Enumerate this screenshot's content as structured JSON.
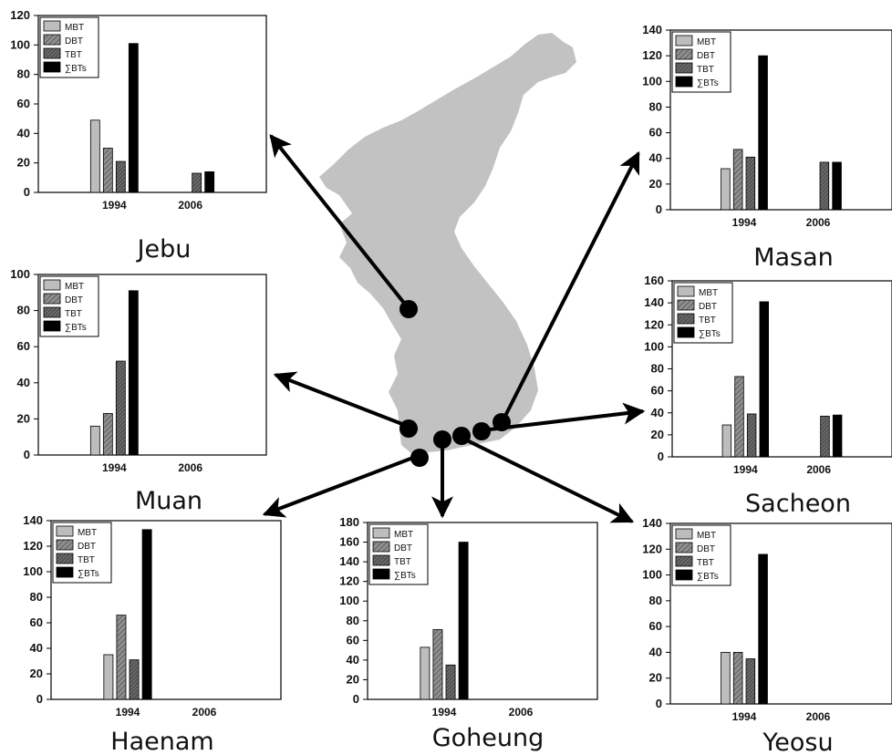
{
  "colors": {
    "map_fill": "#c2c2c2",
    "arrow": "#000000",
    "MBT": "#bdbdbd",
    "DBT": "#8c8c8c",
    "TBT": "#5e5e5e",
    "sum": "#000000"
  },
  "legend_labels": [
    "MBT",
    "DBT",
    "TBT",
    "∑BTs"
  ],
  "chart_data": [
    {
      "type": "bar",
      "site": "Jebu",
      "categories": [
        "1994",
        "2006"
      ],
      "ylim": [
        0,
        120
      ],
      "yticks": [
        0,
        20,
        40,
        60,
        80,
        100,
        120
      ],
      "series": [
        {
          "name": "MBT",
          "values": [
            49,
            null
          ]
        },
        {
          "name": "DBT",
          "values": [
            30,
            null
          ]
        },
        {
          "name": "TBT",
          "values": [
            21,
            13
          ]
        },
        {
          "name": "∑BTs",
          "values": [
            101,
            14
          ]
        }
      ]
    },
    {
      "type": "bar",
      "site": "Masan",
      "categories": [
        "1994",
        "2006"
      ],
      "ylim": [
        0,
        140
      ],
      "yticks": [
        0,
        20,
        40,
        60,
        80,
        100,
        120,
        140
      ],
      "series": [
        {
          "name": "MBT",
          "values": [
            32,
            null
          ]
        },
        {
          "name": "DBT",
          "values": [
            47,
            null
          ]
        },
        {
          "name": "TBT",
          "values": [
            41,
            37
          ]
        },
        {
          "name": "∑BTs",
          "values": [
            120,
            37
          ]
        }
      ]
    },
    {
      "type": "bar",
      "site": "Muan",
      "categories": [
        "1994",
        "2006"
      ],
      "ylim": [
        0,
        100
      ],
      "yticks": [
        0,
        20,
        40,
        60,
        80,
        100
      ],
      "series": [
        {
          "name": "MBT",
          "values": [
            16,
            null
          ]
        },
        {
          "name": "DBT",
          "values": [
            23,
            null
          ]
        },
        {
          "name": "TBT",
          "values": [
            52,
            null
          ]
        },
        {
          "name": "∑BTs",
          "values": [
            91,
            null
          ]
        }
      ]
    },
    {
      "type": "bar",
      "site": "Sacheon",
      "categories": [
        "1994",
        "2006"
      ],
      "ylim": [
        0,
        160
      ],
      "yticks": [
        0,
        20,
        40,
        60,
        80,
        100,
        120,
        140,
        160
      ],
      "series": [
        {
          "name": "MBT",
          "values": [
            29,
            null
          ]
        },
        {
          "name": "DBT",
          "values": [
            73,
            null
          ]
        },
        {
          "name": "TBT",
          "values": [
            39,
            37
          ]
        },
        {
          "name": "∑BTs",
          "values": [
            141,
            38
          ]
        }
      ]
    },
    {
      "type": "bar",
      "site": "Haenam",
      "categories": [
        "1994",
        "2006"
      ],
      "ylim": [
        0,
        140
      ],
      "yticks": [
        0,
        20,
        40,
        60,
        80,
        100,
        120,
        140
      ],
      "series": [
        {
          "name": "MBT",
          "values": [
            35,
            null
          ]
        },
        {
          "name": "DBT",
          "values": [
            66,
            null
          ]
        },
        {
          "name": "TBT",
          "values": [
            31,
            null
          ]
        },
        {
          "name": "∑BTs",
          "values": [
            133,
            null
          ]
        }
      ]
    },
    {
      "type": "bar",
      "site": "Goheung",
      "categories": [
        "1994",
        "2006"
      ],
      "ylim": [
        0,
        180
      ],
      "yticks": [
        0,
        20,
        40,
        60,
        80,
        100,
        120,
        140,
        160,
        180
      ],
      "series": [
        {
          "name": "MBT",
          "values": [
            53,
            null
          ]
        },
        {
          "name": "DBT",
          "values": [
            71,
            null
          ]
        },
        {
          "name": "TBT",
          "values": [
            35,
            null
          ]
        },
        {
          "name": "∑BTs",
          "values": [
            160,
            null
          ]
        }
      ]
    },
    {
      "type": "bar",
      "site": "Yeosu",
      "categories": [
        "1994",
        "2006"
      ],
      "ylim": [
        0,
        140
      ],
      "yticks": [
        0,
        20,
        40,
        60,
        80,
        100,
        120,
        140
      ],
      "series": [
        {
          "name": "MBT",
          "values": [
            40,
            null
          ]
        },
        {
          "name": "DBT",
          "values": [
            40,
            null
          ]
        },
        {
          "name": "TBT",
          "values": [
            35,
            null
          ]
        },
        {
          "name": "∑BTs",
          "values": [
            116,
            null
          ]
        }
      ]
    }
  ]
}
